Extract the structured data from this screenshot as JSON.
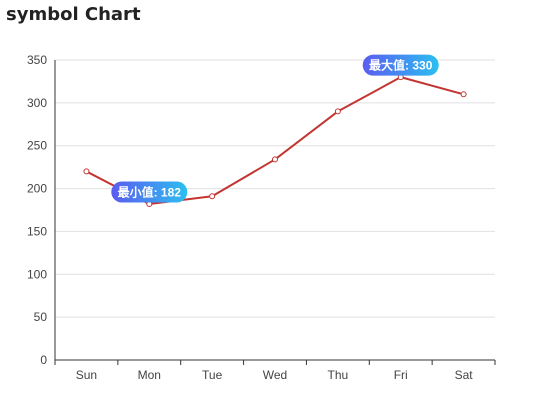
{
  "chart_data": {
    "type": "line",
    "title": "symbol Chart",
    "categories": [
      "Sun",
      "Mon",
      "Tue",
      "Wed",
      "Thu",
      "Fri",
      "Sat"
    ],
    "series": [
      {
        "values": [
          220,
          182,
          191,
          234,
          290,
          330,
          310
        ]
      }
    ],
    "ylim": [
      0,
      350
    ],
    "yticks": [
      0,
      50,
      100,
      150,
      200,
      250,
      300,
      350
    ],
    "grid": true,
    "annotations": [
      {
        "label": "最小值: 182",
        "category": "Mon",
        "value": 182
      },
      {
        "label": "最大值: 330",
        "category": "Fri",
        "value": 330
      }
    ],
    "colors": {
      "line": "#c23531",
      "grid": "#e0e0e0",
      "axis": "#333333",
      "callout_start": "#5b5cf0",
      "callout_end": "#2bbff0"
    }
  }
}
